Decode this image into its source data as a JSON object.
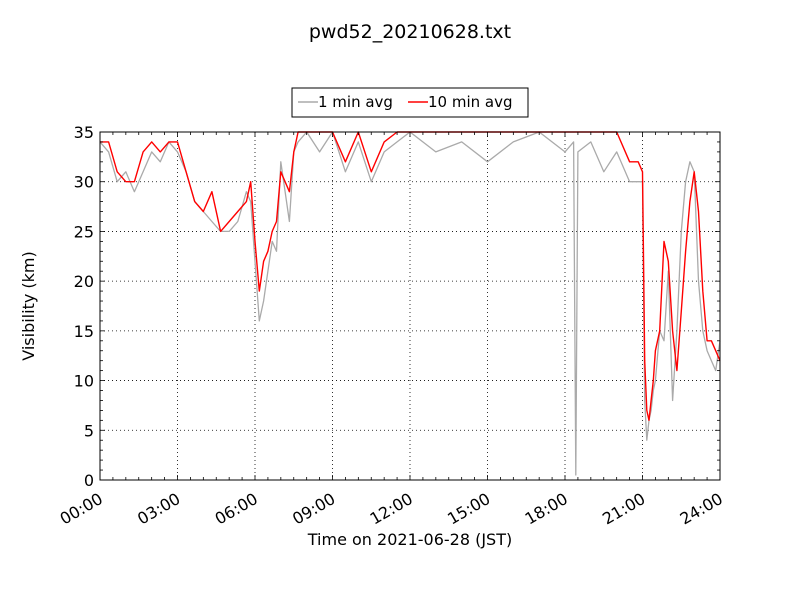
{
  "chart_data": {
    "type": "line",
    "title": "pwd52_20210628.txt",
    "xlabel": "Time on 2021-06-28 (JST)",
    "ylabel": "Visibility (km)",
    "xlim": [
      "00:00",
      "24:00"
    ],
    "ylim": [
      0,
      35
    ],
    "x_ticks": [
      "00:00",
      "03:00",
      "06:00",
      "09:00",
      "12:00",
      "15:00",
      "18:00",
      "21:00",
      "24:00"
    ],
    "y_ticks": [
      0,
      5,
      10,
      15,
      20,
      25,
      30,
      35
    ],
    "grid": true,
    "legend_position": "top-center",
    "series": [
      {
        "name": "1 min avg",
        "color": "#aaaaaa",
        "x": [
          "00:00",
          "00:20",
          "00:40",
          "01:00",
          "01:20",
          "01:40",
          "02:00",
          "02:20",
          "02:40",
          "03:00",
          "03:20",
          "03:40",
          "04:00",
          "04:20",
          "04:40",
          "05:00",
          "05:20",
          "05:40",
          "05:50",
          "06:00",
          "06:10",
          "06:20",
          "06:30",
          "06:40",
          "06:50",
          "07:00",
          "07:20",
          "07:30",
          "07:40",
          "08:00",
          "08:30",
          "09:00",
          "09:30",
          "10:00",
          "10:30",
          "11:00",
          "11:30",
          "12:00",
          "13:00",
          "14:00",
          "15:00",
          "16:00",
          "17:00",
          "18:00",
          "18:20",
          "18:25",
          "18:30",
          "19:00",
          "19:30",
          "20:00",
          "20:30",
          "21:00",
          "21:05",
          "21:10",
          "21:15",
          "21:20",
          "21:25",
          "21:30",
          "21:40",
          "21:50",
          "22:00",
          "22:10",
          "22:20",
          "22:30",
          "22:40",
          "22:50",
          "23:00",
          "23:10",
          "23:20",
          "23:30",
          "23:40",
          "23:50",
          "24:00"
        ],
        "values": [
          34,
          33,
          30,
          31,
          29,
          31,
          33,
          32,
          34,
          33,
          31,
          28,
          27,
          26,
          25,
          25,
          26,
          29,
          28,
          22,
          16,
          18,
          21,
          24,
          23,
          32,
          26,
          33,
          34,
          35,
          33,
          35,
          31,
          34,
          30,
          33,
          34,
          35,
          33,
          34,
          32,
          34,
          35,
          33,
          34,
          0.5,
          33,
          34,
          31,
          33,
          30,
          30,
          8,
          4,
          6,
          7,
          9,
          10,
          15,
          14,
          21,
          8,
          15,
          25,
          30,
          32,
          31,
          20,
          15,
          13,
          12,
          11,
          14
        ]
      },
      {
        "name": "10 min avg",
        "color": "#ff0000",
        "x": [
          "00:00",
          "00:20",
          "00:40",
          "01:00",
          "01:20",
          "01:40",
          "02:00",
          "02:20",
          "02:40",
          "03:00",
          "03:20",
          "03:40",
          "04:00",
          "04:20",
          "04:40",
          "05:00",
          "05:20",
          "05:40",
          "05:50",
          "06:00",
          "06:10",
          "06:20",
          "06:30",
          "06:40",
          "06:50",
          "07:00",
          "07:20",
          "07:30",
          "07:40",
          "08:00",
          "08:30",
          "09:00",
          "09:30",
          "10:00",
          "10:30",
          "11:00",
          "11:30",
          "12:00",
          "13:00",
          "14:00",
          "15:00",
          "16:00",
          "17:00",
          "18:00",
          "18:30",
          "19:00",
          "19:30",
          "20:00",
          "20:30",
          "20:50",
          "21:00",
          "21:05",
          "21:10",
          "21:15",
          "21:20",
          "21:25",
          "21:30",
          "21:40",
          "21:50",
          "22:00",
          "22:10",
          "22:20",
          "22:30",
          "22:40",
          "22:50",
          "23:00",
          "23:10",
          "23:20",
          "23:30",
          "23:40",
          "23:50",
          "24:00"
        ],
        "values": [
          34,
          34,
          31,
          30,
          30,
          33,
          34,
          33,
          34,
          34,
          31,
          28,
          27,
          29,
          25,
          26,
          27,
          28,
          30,
          24,
          19,
          22,
          23,
          25,
          26,
          31,
          29,
          33,
          35,
          35,
          35,
          35,
          32,
          35,
          31,
          34,
          35,
          35,
          35,
          35,
          35,
          35,
          35,
          35,
          35,
          35,
          35,
          35,
          32,
          32,
          31,
          12,
          7,
          6,
          8,
          10,
          13,
          15,
          24,
          22,
          15,
          11,
          17,
          23,
          28,
          31,
          27,
          19,
          14,
          14,
          13,
          12
        ]
      }
    ]
  }
}
